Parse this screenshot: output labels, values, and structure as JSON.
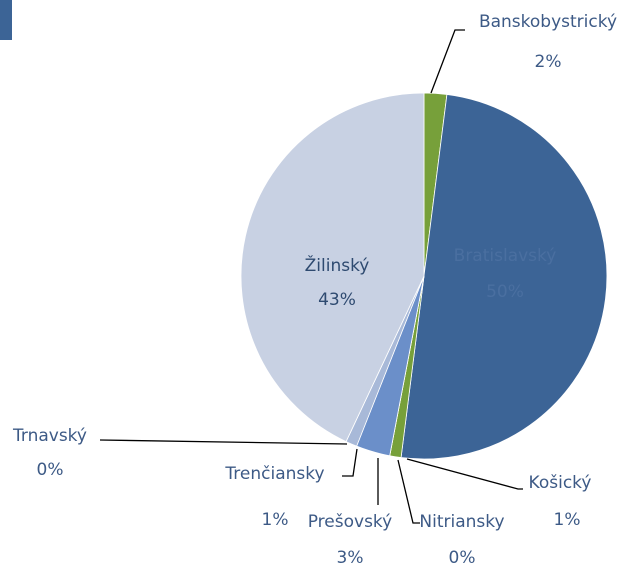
{
  "chart_data": {
    "type": "pie",
    "categories": [
      "Banskobystrický",
      "Bratislavský",
      "Košický",
      "Nitriansky",
      "Prešovský",
      "Trenčiansky",
      "Trnavský",
      "Žilinský"
    ],
    "values": [
      2,
      50,
      1,
      0,
      3,
      1,
      0,
      43
    ],
    "value_labels": [
      "2%",
      "50%",
      "1%",
      "0%",
      "3%",
      "1%",
      "0%",
      "43%"
    ],
    "colors": [
      "#77a03a",
      "#3c6496",
      "#77a03a",
      "#4d74aa",
      "#6b8fc9",
      "#a8b9d8",
      "#77a03a",
      "#c8d1e3"
    ]
  }
}
